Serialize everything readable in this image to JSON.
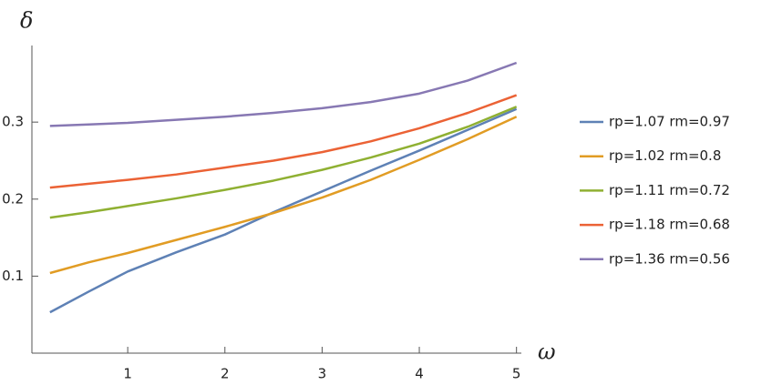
{
  "chart_data": {
    "type": "line",
    "xlabel": "ω",
    "ylabel": "δ",
    "x": [
      0.2,
      0.6,
      1,
      1.5,
      2,
      2.5,
      3,
      3.5,
      4,
      4.5,
      5
    ],
    "series": [
      {
        "name": "rp=1.07 rm=0.97",
        "color": "#5e81b5",
        "values": [
          0.053,
          0.08,
          0.106,
          0.131,
          0.154,
          0.183,
          0.21,
          0.237,
          0.263,
          0.29,
          0.317
        ]
      },
      {
        "name": "rp=1.02 rm=0.8",
        "color": "#e19c24",
        "values": [
          0.104,
          0.118,
          0.13,
          0.147,
          0.164,
          0.182,
          0.202,
          0.225,
          0.251,
          0.278,
          0.307
        ]
      },
      {
        "name": "rp=1.11 rm=0.72",
        "color": "#8fb032",
        "values": [
          0.176,
          0.183,
          0.191,
          0.201,
          0.212,
          0.224,
          0.238,
          0.254,
          0.272,
          0.294,
          0.32
        ]
      },
      {
        "name": "rp=1.18 rm=0.68",
        "color": "#eb6235",
        "values": [
          0.215,
          0.22,
          0.225,
          0.232,
          0.241,
          0.25,
          0.261,
          0.275,
          0.292,
          0.312,
          0.335
        ]
      },
      {
        "name": "rp=1.36 rm=0.56",
        "color": "#8778b3",
        "values": [
          0.295,
          0.297,
          0.299,
          0.303,
          0.307,
          0.312,
          0.318,
          0.326,
          0.337,
          0.354,
          0.377
        ]
      }
    ],
    "xlim": [
      0,
      5.05
    ],
    "xticks": [
      1,
      2,
      3,
      4,
      5
    ],
    "ylim": [
      0,
      0.39
    ],
    "yticks": [
      0.1,
      0.2,
      0.3
    ],
    "grid": false,
    "legend": "right"
  }
}
